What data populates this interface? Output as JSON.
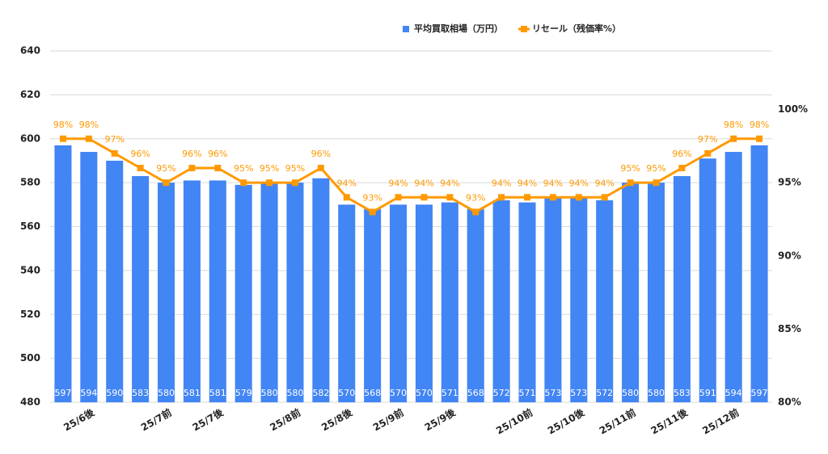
{
  "chart_data": {
    "type": "bar",
    "categories": [
      null,
      "25/6後",
      null,
      null,
      "25/7前",
      null,
      "25/7後",
      null,
      null,
      "25/8前",
      null,
      "25/8後",
      null,
      "25/9前",
      null,
      "25/9後",
      null,
      null,
      "25/10前",
      null,
      "25/10後",
      null,
      "25/11前",
      null,
      "25/11後",
      null,
      "25/12前",
      null
    ],
    "series": [
      {
        "name": "平均買取相場（万円）",
        "type": "bar",
        "color": "#4285f4",
        "values": [
          597,
          594,
          590,
          583,
          580,
          581,
          581,
          579,
          580,
          580,
          582,
          570,
          568,
          570,
          570,
          571,
          568,
          572,
          571,
          573,
          573,
          572,
          580,
          580,
          583,
          591,
          594,
          597
        ]
      },
      {
        "name": "リセール（残価率%）",
        "type": "line",
        "axis": "y2",
        "color": "#ff9900",
        "values": [
          98,
          98,
          97,
          96,
          95,
          96,
          96,
          95,
          95,
          95,
          96,
          94,
          93,
          94,
          94,
          94,
          93,
          94,
          94,
          94,
          94,
          94,
          95,
          95,
          96,
          97,
          98,
          98
        ],
        "value_labels": [
          "98%",
          "98%",
          "97%",
          "96%",
          "95%",
          "96%",
          "96%",
          "95%",
          "95%",
          "95%",
          "96%",
          "94%",
          "93%",
          "94%",
          "94%",
          "94%",
          "93%",
          "94%",
          "94%",
          "94%",
          "94%",
          "94%",
          "95%",
          "95%",
          "96%",
          "97%",
          "98%",
          "98%"
        ]
      }
    ],
    "ylim": [
      480,
      640
    ],
    "yticks": [
      480,
      500,
      520,
      540,
      560,
      580,
      600,
      620,
      640
    ],
    "y2lim": [
      80,
      104
    ],
    "y2ticks": [
      {
        "value": 80,
        "label": "80%"
      },
      {
        "value": 85,
        "label": "85%"
      },
      {
        "value": 90,
        "label": "90%"
      },
      {
        "value": 95,
        "label": "95%"
      },
      {
        "value": 100,
        "label": "100%"
      }
    ],
    "grid": true,
    "legend": "top"
  }
}
